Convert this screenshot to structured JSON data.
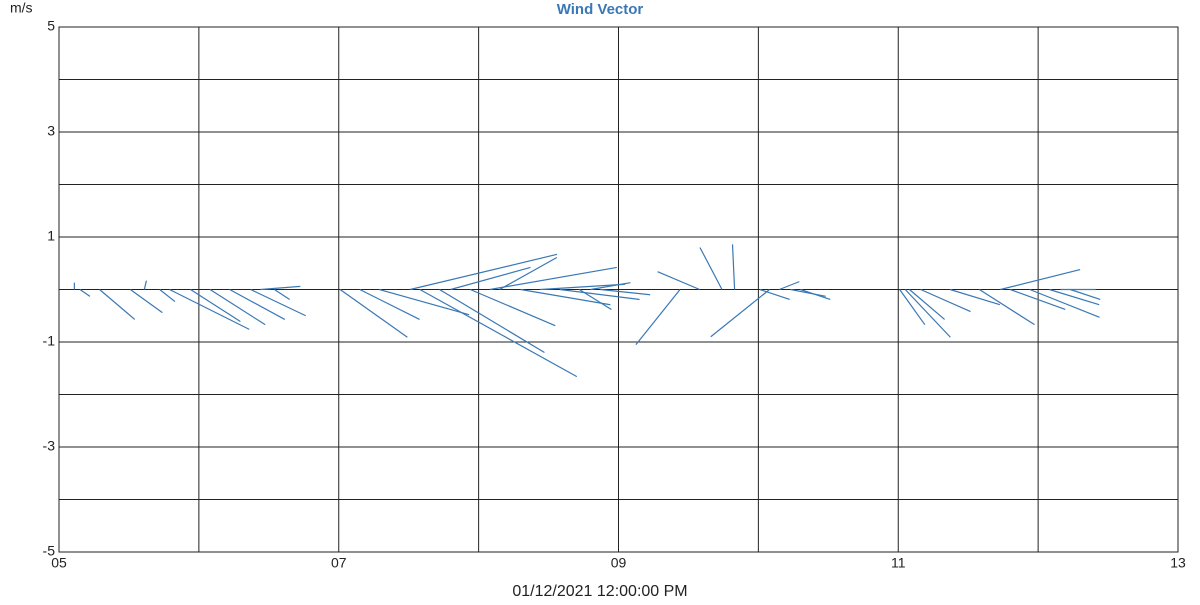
{
  "chart_data": {
    "type": "vector",
    "title": "Wind Vector",
    "y_label": "m/s",
    "x_label": "01/12/2021 12:00:00 PM",
    "color": "#3a78b5",
    "xlim": [
      5,
      13
    ],
    "xticks": [
      {
        "value": 5,
        "label": "05"
      },
      {
        "value": 7,
        "label": "07"
      },
      {
        "value": 9,
        "label": "09"
      },
      {
        "value": 11,
        "label": "11"
      },
      {
        "value": 13,
        "label": "13"
      }
    ],
    "xminor": [
      6,
      8,
      10,
      12
    ],
    "ylim": [
      -5,
      5
    ],
    "yticks": [
      5,
      3,
      1,
      -1,
      -3,
      -5
    ],
    "yminor": [
      4,
      2,
      0,
      -2,
      -4
    ],
    "grid": true,
    "x": [
      5.11,
      5.15,
      5.29,
      5.51,
      5.61,
      5.72,
      5.79,
      5.94,
      6.08,
      6.22,
      6.37,
      6.44,
      6.54,
      7.01,
      7.15,
      7.29,
      7.51,
      7.58,
      7.72,
      7.8,
      7.94,
      8.08,
      8.15,
      8.3,
      8.44,
      8.58,
      8.72,
      8.8,
      8.87,
      9.44,
      9.58,
      9.74,
      9.83,
      10.08,
      10.01,
      10.15,
      10.23,
      10.3,
      11.01,
      11.05,
      11.08,
      11.16,
      11.37,
      11.58,
      11.73,
      11.8,
      11.94,
      12.08,
      12.16,
      12.23
    ],
    "u": [
      0,
      0.19,
      0.67,
      0.61,
      0.04,
      0.29,
      1.52,
      0.95,
      1.05,
      1.05,
      1.05,
      0.76,
      0.29,
      1.28,
      1.14,
      1.71,
      2.8,
      2.99,
      2.0,
      1.52,
      1.62,
      2.42,
      1.09,
      1.71,
      1.62,
      1.52,
      0.61,
      0.76,
      0.95,
      -0.84,
      -0.8,
      -0.42,
      -0.04,
      -1.12,
      0.57,
      0.38,
      0.67,
      0.57,
      0.48,
      0.86,
      0.67,
      0.95,
      0.95,
      1.05,
      1.52,
      1.05,
      1.33,
      0.95,
      0.67,
      0.57
    ],
    "v": [
      0.13,
      -0.13,
      -0.57,
      -0.44,
      0.17,
      -0.23,
      -0.76,
      -0.61,
      -0.67,
      -0.57,
      -0.5,
      0.06,
      -0.19,
      -0.91,
      -0.57,
      -0.48,
      0.67,
      -1.66,
      -1.2,
      0.42,
      -0.69,
      0.42,
      0.61,
      -0.29,
      0.1,
      -0.19,
      -0.38,
      0.13,
      -0.1,
      -1.05,
      0.34,
      0.8,
      0.86,
      -0.9,
      -0.19,
      0.15,
      -0.13,
      -0.19,
      -0.67,
      -0.91,
      -0.57,
      -0.42,
      -0.29,
      -0.67,
      0.38,
      -0.38,
      -0.53,
      -0.29,
      0,
      -0.19
    ]
  }
}
